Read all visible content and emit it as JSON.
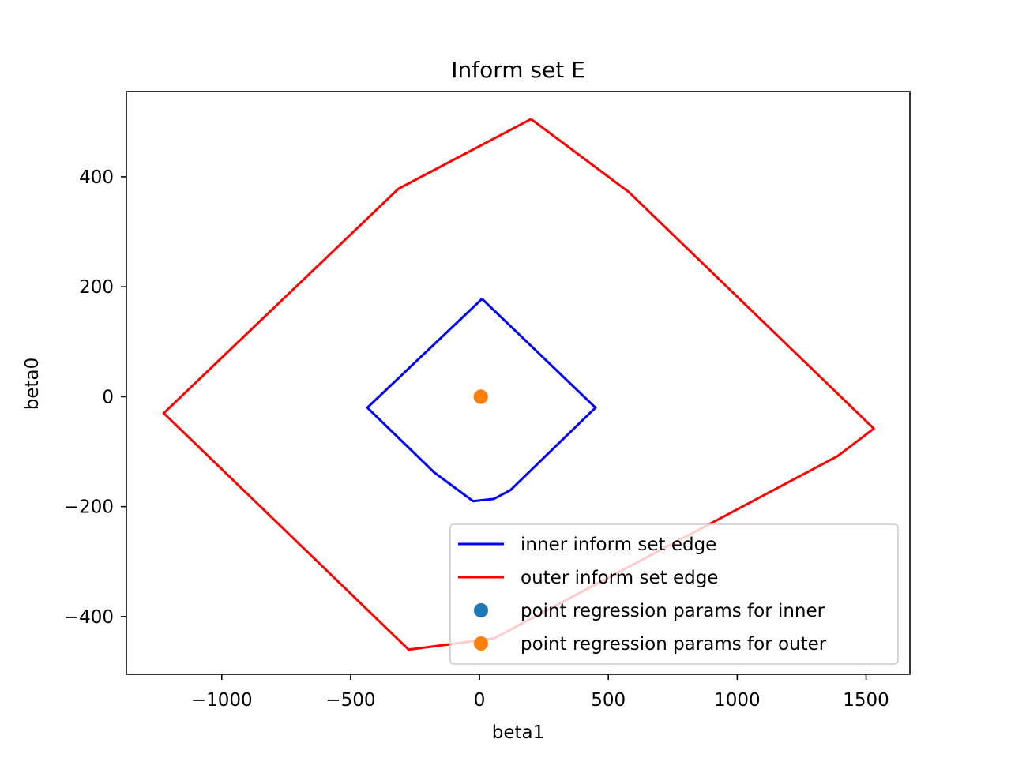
{
  "chart_data": {
    "type": "line",
    "title": "Inform set E",
    "xlabel": "beta1",
    "ylabel": "beta0",
    "xlim": [
      -1370,
      1670
    ],
    "ylim": [
      -505,
      555
    ],
    "xticks": [
      {
        "value": -1000,
        "label": "−1000"
      },
      {
        "value": -500,
        "label": "−500"
      },
      {
        "value": 0,
        "label": "0"
      },
      {
        "value": 500,
        "label": "500"
      },
      {
        "value": 1000,
        "label": "1000"
      },
      {
        "value": 1500,
        "label": "1500"
      }
    ],
    "yticks": [
      {
        "value": -400,
        "label": "−400"
      },
      {
        "value": -200,
        "label": "−200"
      },
      {
        "value": 0,
        "label": "0"
      },
      {
        "value": 200,
        "label": "200"
      },
      {
        "value": 400,
        "label": "400"
      }
    ],
    "grid": false,
    "legend_position": "lower-right",
    "series": [
      {
        "name": "inner inform set edge",
        "kind": "line",
        "color": "#0000ff",
        "x": [
          10,
          450,
          120,
          55,
          -25,
          -175,
          -435,
          10
        ],
        "y": [
          178,
          -20,
          -170,
          -186,
          -190,
          -138,
          -20,
          178
        ]
      },
      {
        "name": "outer inform set edge",
        "kind": "line",
        "color": "#ff0000",
        "x": [
          200,
          580,
          1530,
          1390,
          55,
          -275,
          -1225,
          -315,
          200
        ],
        "y": [
          505,
          372,
          -58,
          -108,
          -440,
          -460,
          -30,
          378,
          505
        ]
      },
      {
        "name": "point regression params for inner",
        "kind": "point",
        "color": "#1f77b4",
        "x": [
          5
        ],
        "y": [
          0
        ]
      },
      {
        "name": "point regression params for outer",
        "kind": "point",
        "color": "#ff7f0e",
        "x": [
          5
        ],
        "y": [
          0
        ]
      }
    ]
  }
}
